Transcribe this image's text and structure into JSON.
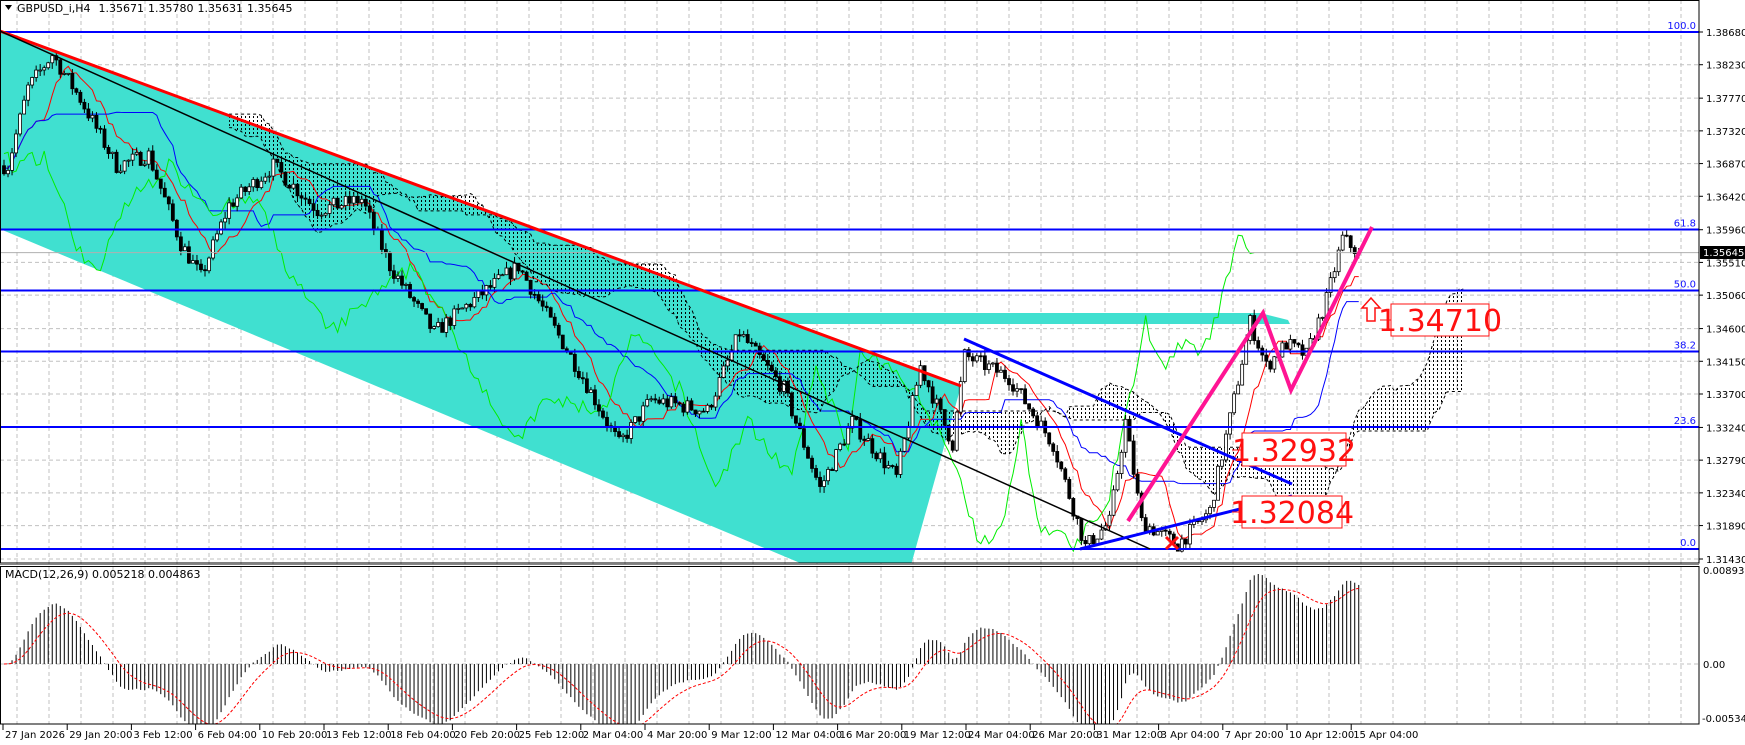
{
  "header": {
    "symbol": "GBPUSD_i,H4",
    "open": "1.35671",
    "high": "1.35780",
    "low": "1.35631",
    "close": "1.35645"
  },
  "macd_panel": {
    "label": "MACD(12,26,9) 0.005218 0.004863",
    "ticks": [
      "0.008932",
      "0.00",
      "-0.005341"
    ]
  },
  "price_axis": {
    "ticks": [
      "1.38680",
      "1.38230",
      "1.37770",
      "1.37320",
      "1.36870",
      "1.36420",
      "1.35960",
      "1.35510",
      "1.35060",
      "1.34600",
      "1.34150",
      "1.33700",
      "1.33240",
      "1.32790",
      "1.32340",
      "1.31890",
      "1.31430"
    ],
    "current_price": "1.35645"
  },
  "time_axis": {
    "ticks": [
      "27 Jan 2026",
      "29 Jan 20:00",
      "3 Feb 12:00",
      "6 Feb 04:00",
      "10 Feb 20:00",
      "13 Feb 12:00",
      "18 Feb 04:00",
      "20 Feb 20:00",
      "25 Feb 12:00",
      "2 Mar 04:00",
      "4 Mar 20:00",
      "9 Mar 12:00",
      "12 Mar 04:00",
      "16 Mar 20:00",
      "19 Mar 12:00",
      "24 Mar 04:00",
      "26 Mar 20:00",
      "31 Mar 12:00",
      "3 Apr 04:00",
      "7 Apr 20:00",
      "10 Apr 12:00",
      "15 Apr 04:00"
    ]
  },
  "fibonacci": {
    "levels": [
      {
        "label": "100.0",
        "price": 1.3868
      },
      {
        "label": "61.8",
        "price": 1.35963
      },
      {
        "label": "50.0",
        "price": 1.35124
      },
      {
        "label": "38.2",
        "price": 1.34284
      },
      {
        "label": "23.6",
        "price": 1.33246
      },
      {
        "label": "0.0",
        "price": 1.31567
      }
    ]
  },
  "annotations": {
    "resistance": "1.34710",
    "mid": "1.32932",
    "support": "1.32084"
  },
  "colors": {
    "fib": "#0000ff",
    "channel": "#40e0d0",
    "trend_red": "#ff0000",
    "zigzag": "#ff1493",
    "label": "#ff1010",
    "tenkan": "#ff0000",
    "kijun": "#0000ff",
    "chikou": "#00ee00"
  },
  "chart_data": {
    "type": "candlestick",
    "timeframe": "H4",
    "ylim": [
      1.3143,
      1.3868
    ],
    "price_path": [
      [
        1,
        1.3684
      ],
      [
        6,
        1.3791
      ],
      [
        12,
        1.3837
      ],
      [
        19,
        1.3776
      ],
      [
        28,
        1.3684
      ],
      [
        36,
        1.3699
      ],
      [
        44,
        1.3577
      ],
      [
        49,
        1.3531
      ],
      [
        56,
        1.363
      ],
      [
        67,
        1.3684
      ],
      [
        78,
        1.3623
      ],
      [
        89,
        1.3638
      ],
      [
        96,
        1.3546
      ],
      [
        107,
        1.3454
      ],
      [
        117,
        1.35
      ],
      [
        128,
        1.3546
      ],
      [
        136,
        1.3469
      ],
      [
        144,
        1.3393
      ],
      [
        153,
        1.3301
      ],
      [
        161,
        1.3362
      ],
      [
        175,
        1.3347
      ],
      [
        183,
        1.3454
      ],
      [
        194,
        1.3377
      ],
      [
        203,
        1.324
      ],
      [
        211,
        1.3332
      ],
      [
        222,
        1.3255
      ],
      [
        228,
        1.3408
      ],
      [
        236,
        1.3301
      ],
      [
        239,
        1.3423
      ],
      [
        250,
        1.3393
      ],
      [
        261,
        1.3301
      ],
      [
        269,
        1.316
      ],
      [
        275,
        1.3194
      ],
      [
        279,
        1.3332
      ],
      [
        283,
        1.3194
      ],
      [
        292,
        1.3163
      ],
      [
        300,
        1.3209
      ],
      [
        306,
        1.3362
      ],
      [
        310,
        1.3469
      ],
      [
        314,
        1.3408
      ],
      [
        319,
        1.3439
      ],
      [
        324,
        1.3423
      ],
      [
        329,
        1.35
      ],
      [
        333,
        1.3584
      ],
      [
        337,
        1.35645
      ]
    ],
    "indicators": [
      "Ichimoku",
      "MACD(12,26,9)"
    ],
    "macd": {
      "main": 0.005218,
      "signal": 0.004863,
      "ylim": [
        -0.005341,
        0.008932
      ]
    }
  }
}
